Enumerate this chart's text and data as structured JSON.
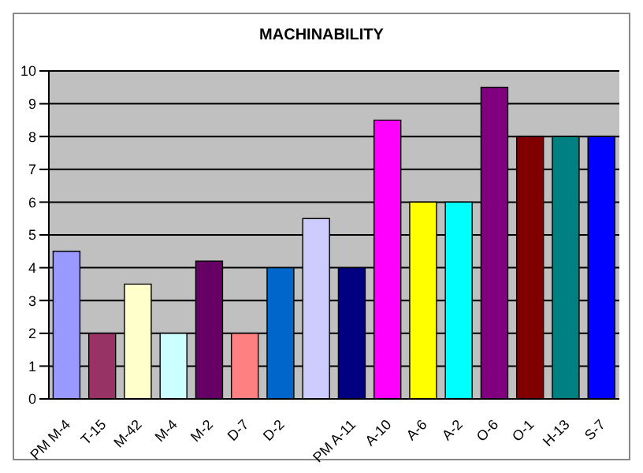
{
  "chart_data": {
    "type": "bar",
    "title": "MACHINABILITY",
    "categories": [
      "PM M-4",
      "T-15",
      "M-42",
      "M-4",
      "M-2",
      "D-7",
      "D-2",
      null,
      "PM A-11",
      "A-10",
      "A-6",
      "A-2",
      "O-6",
      "O-1",
      "H-13",
      "S-7"
    ],
    "values": [
      4.5,
      2,
      3.5,
      2,
      4.2,
      2,
      4,
      5.5,
      4,
      8.5,
      6,
      6,
      9.5,
      8,
      8,
      8
    ],
    "colors": [
      "#9999ff",
      "#993366",
      "#ffffcc",
      "#ccffff",
      "#660066",
      "#ff8080",
      "#0066cc",
      "#ccccff",
      "#000080",
      "#ff00ff",
      "#ffff00",
      "#00ffff",
      "#800080",
      "#800000",
      "#008080",
      "#0000ff"
    ],
    "ylim": [
      0,
      10
    ],
    "yticks": [
      0,
      1,
      2,
      3,
      4,
      5,
      6,
      7,
      8,
      9,
      10
    ],
    "grid": "y",
    "legend": false
  }
}
